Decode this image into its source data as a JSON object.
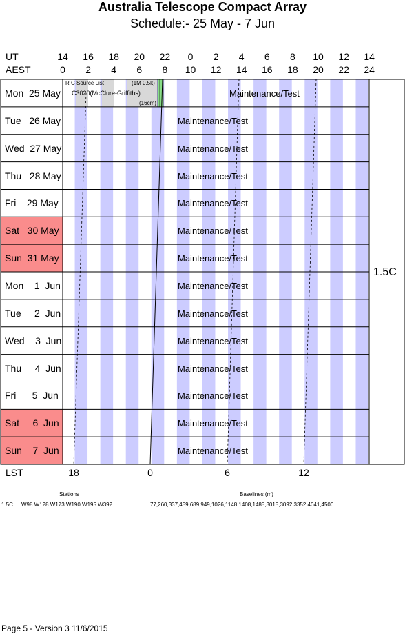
{
  "header": {
    "title": "Australia Telescope Compact Array",
    "subtitle": "Schedule:- 25 May - 7  Jun"
  },
  "axes": {
    "ut_label": "UT",
    "aest_label": "AEST",
    "lst_label": "LST",
    "ut_ticks": [
      "14",
      "16",
      "18",
      "20",
      "22",
      "0",
      "2",
      "4",
      "6",
      "8",
      "10",
      "12",
      "14"
    ],
    "aest_ticks": [
      "0",
      "2",
      "4",
      "6",
      "8",
      "10",
      "12",
      "14",
      "16",
      "18",
      "20",
      "22",
      "24"
    ],
    "lst_ticks": [
      "18",
      "0",
      "6",
      "12"
    ]
  },
  "days": [
    {
      "label": "Mon  25 May",
      "weekend": false,
      "activity": "Maintenance/Test"
    },
    {
      "label": "Tue   26 May",
      "weekend": false,
      "activity": "Maintenance/Test"
    },
    {
      "label": "Wed  27 May",
      "weekend": false,
      "activity": "Maintenance/Test"
    },
    {
      "label": "Thu   28 May",
      "weekend": false,
      "activity": "Maintenance/Test"
    },
    {
      "label": "Fri    29 May",
      "weekend": false,
      "activity": "Maintenance/Test"
    },
    {
      "label": "Sat   30 May",
      "weekend": true,
      "activity": "Maintenance/Test"
    },
    {
      "label": "Sun  31 May",
      "weekend": true,
      "activity": "Maintenance/Test"
    },
    {
      "label": "Mon    1  Jun",
      "weekend": false,
      "activity": "Maintenance/Test"
    },
    {
      "label": "Tue     2  Jun",
      "weekend": false,
      "activity": "Maintenance/Test"
    },
    {
      "label": "Wed    3  Jun",
      "weekend": false,
      "activity": "Maintenance/Test"
    },
    {
      "label": "Thu     4  Jun",
      "weekend": false,
      "activity": "Maintenance/Test"
    },
    {
      "label": "Fri      5  Jun",
      "weekend": false,
      "activity": "Maintenance/Test"
    },
    {
      "label": "Sat     6  Jun",
      "weekend": true,
      "activity": "Maintenance/Test"
    },
    {
      "label": "Sun    7  Jun",
      "weekend": true,
      "activity": "Maintenance/Test"
    }
  ],
  "first_day_blocks": {
    "rc_source_list": "R C Source List",
    "project": "C3020(McClure-Griffiths)",
    "freq_top": "(1M 0.5k)",
    "band": "(16cm)"
  },
  "config": "1.5C",
  "array": {
    "stations_heading": "Stations",
    "baselines_heading": "Baselines (m)",
    "config_name": "1.5C",
    "stations": "W98 W128 W173 W190 W195 W392",
    "baselines": "77,260,337,459,689,949,1026,1148,1408,1485,3015,3092,3352,4041,4500"
  },
  "footer": "Page 5 - Version 3  11/6/2015",
  "colors": {
    "stripe": "#ccccff",
    "weekend": "#fa8c8c",
    "gray_block": "#d8d8d8",
    "green_block": "#88dd88"
  }
}
